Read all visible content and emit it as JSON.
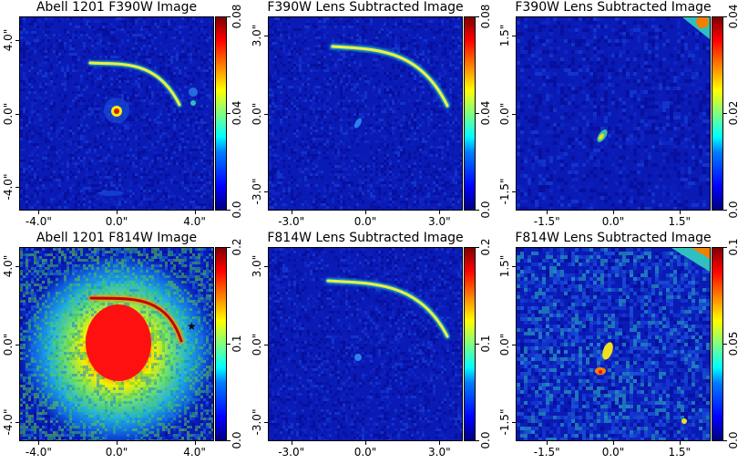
{
  "chart_data": [
    {
      "type": "heatmap",
      "title": "Abell 1201 F390W Image",
      "x_ticks": [
        "-4.0\"",
        "0.0\"",
        "4.0\""
      ],
      "y_ticks": [
        "4.0\"",
        "0.0\"",
        "-4.0\""
      ],
      "colorbar_ticks": [
        "0.08",
        "0.04",
        "0.0"
      ],
      "colorbar_range": [
        0,
        0.08
      ],
      "colormap": "jet"
    },
    {
      "type": "heatmap",
      "title": "F390W Lens Subtracted Image",
      "x_ticks": [
        "-3.0\"",
        "0.0\"",
        "3.0\""
      ],
      "y_ticks": [
        "3.0\"",
        "0.0\"",
        "-3.0\""
      ],
      "colorbar_ticks": [
        "0.08",
        "0.04",
        "0.0"
      ],
      "colorbar_range": [
        0,
        0.08
      ],
      "colormap": "jet"
    },
    {
      "type": "heatmap",
      "title": "F390W Lens Subtracted Image",
      "x_ticks": [
        "-1.5\"",
        "0.0\"",
        "1.5\""
      ],
      "y_ticks": [
        "1.5\"",
        "0.0\"",
        "-1.5\""
      ],
      "colorbar_ticks": [
        "0.04",
        "0.02",
        "0.0"
      ],
      "colorbar_range": [
        0,
        0.04
      ],
      "colormap": "jet"
    },
    {
      "type": "heatmap",
      "title": "Abell 1201 F814W Image",
      "x_ticks": [
        "-4.0\"",
        "0.0\"",
        "4.0\""
      ],
      "y_ticks": [
        "4.0\"",
        "0.0\"",
        "-4.0\""
      ],
      "colorbar_ticks": [
        "0.2",
        "0.1",
        "0.0"
      ],
      "colorbar_range": [
        0,
        0.2
      ],
      "colormap": "jet"
    },
    {
      "type": "heatmap",
      "title": "F814W Lens Subtracted Image",
      "x_ticks": [
        "-3.0\"",
        "0.0\"",
        "3.0\""
      ],
      "y_ticks": [
        "3.0\"",
        "0.0\"",
        "-3.0\""
      ],
      "colorbar_ticks": [
        "0.2",
        "0.1",
        "0.0"
      ],
      "colorbar_range": [
        0,
        0.2
      ],
      "colormap": "jet"
    },
    {
      "type": "heatmap",
      "title": "F814W Lens Subtracted Image",
      "x_ticks": [
        "-1.5\"",
        "0.0\"",
        "1.5\""
      ],
      "y_ticks": [
        "1.5\"",
        "0.0\"",
        "-1.5\""
      ],
      "colorbar_ticks": [
        "0.1",
        "0.05",
        "0.0"
      ],
      "colorbar_range": [
        0,
        0.1
      ],
      "colormap": "jet"
    }
  ],
  "colors": {
    "background_blue": "#0a1fb8",
    "arc_yellow": "#f4f040",
    "arc_red": "#d81010",
    "halo_green": "#6fe060"
  }
}
